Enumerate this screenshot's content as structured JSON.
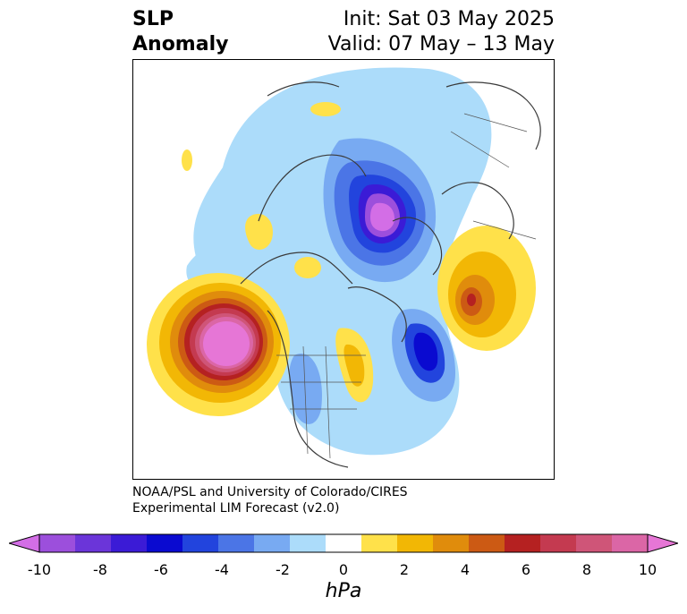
{
  "title": {
    "left_line1": "SLP",
    "left_line2": "Anomaly",
    "right_line1": "Init: Sat 03 May 2025",
    "right_line2": "Valid: 07 May – 13 May"
  },
  "credit": {
    "line1": "NOAA/PSL and University of Colorado/CIRES",
    "line2": "Experimental LIM Forecast (v2.0)"
  },
  "colorbar": {
    "unit": "hPa",
    "tick_labels": [
      "-10",
      "-8",
      "-6",
      "-4",
      "-2",
      "0",
      "2",
      "4",
      "6",
      "8",
      "10"
    ],
    "colors": [
      "#d36ee6",
      "#9c4fdc",
      "#6b35d9",
      "#3b1bd6",
      "#0a0ad0",
      "#2244dd",
      "#4b75e6",
      "#78aaf2",
      "#acdcfa",
      "#ffffff",
      "#ffe14a",
      "#f2b705",
      "#e08c0c",
      "#cc5a14",
      "#b52121",
      "#c43a50",
      "#cf5578",
      "#db66a6",
      "#e676d6"
    ]
  }
}
